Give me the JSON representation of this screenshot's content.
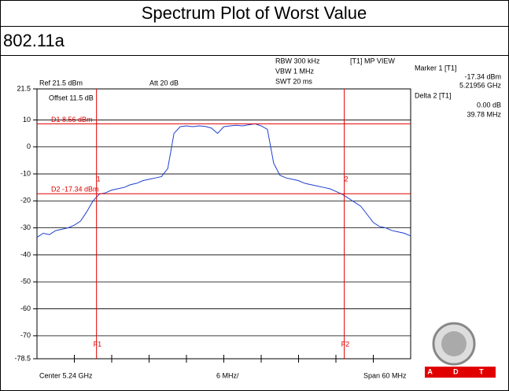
{
  "header": {
    "title": "Spectrum Plot of Worst Value",
    "subtitle": "802.11a"
  },
  "chart_data": {
    "type": "line",
    "x": [
      5.21,
      5.211,
      5.212,
      5.213,
      5.214,
      5.215,
      5.216,
      5.217,
      5.218,
      5.219,
      5.22,
      5.221,
      5.222,
      5.223,
      5.224,
      5.225,
      5.226,
      5.227,
      5.228,
      5.229,
      5.23,
      5.231,
      5.232,
      5.233,
      5.234,
      5.235,
      5.236,
      5.237,
      5.238,
      5.239,
      5.24,
      5.241,
      5.242,
      5.243,
      5.244,
      5.245,
      5.246,
      5.247,
      5.248,
      5.249,
      5.25,
      5.251,
      5.252,
      5.253,
      5.254,
      5.255,
      5.256,
      5.257,
      5.258,
      5.259,
      5.26,
      5.261,
      5.262,
      5.263,
      5.264,
      5.265,
      5.266,
      5.267,
      5.268,
      5.269,
      5.27
    ],
    "series": [
      {
        "color": "#1f3fd0",
        "values": [
          -33.5,
          -32,
          -32.5,
          -31,
          -30.5,
          -30,
          -29,
          -27.5,
          -24,
          -20,
          -17.5,
          -17,
          -16,
          -15.5,
          -15,
          -14,
          -13.5,
          -12.5,
          -12,
          -11.5,
          -11,
          -8,
          5,
          7.5,
          7.8,
          7.5,
          7.8,
          7.6,
          7,
          5,
          7.5,
          7.8,
          8,
          7.8,
          8.2,
          8.56,
          7.8,
          6.5,
          -6,
          -10.5,
          -11.5,
          -12,
          -12.5,
          -13.5,
          -14,
          -14.5,
          -15,
          -15.5,
          -16.5,
          -17.5,
          -19,
          -20.5,
          -22,
          -25,
          -28,
          -29.5,
          -30,
          -31,
          -31.5,
          -32,
          -33
        ]
      }
    ],
    "xlim": [
      5.21,
      5.27
    ],
    "ylim": [
      -78.5,
      21.5
    ],
    "yticks": [
      21.5,
      10,
      0,
      -10,
      -20,
      -30,
      -40,
      -50,
      -60,
      -70,
      -78.5
    ],
    "grid": true,
    "display_lines": [
      {
        "label": "D1 8.56 dBm",
        "value": 8.56
      },
      {
        "label": "D2 -17.34 dBm",
        "value": -17.34
      }
    ],
    "frequency_lines": [
      {
        "label": "F1",
        "value": 5.21956
      },
      {
        "label": "F2",
        "value": 5.25934
      }
    ],
    "markers": [
      {
        "label": "1",
        "x": 5.21956
      },
      {
        "label": "2",
        "x": 5.25934
      }
    ],
    "settings": {
      "rbw": "RBW 300 kHz",
      "vbw": "VBW 1 MHz",
      "swt": "SWT 20 ms",
      "view": "[T1] MP VIEW",
      "ref": "Ref 21.5 dBm",
      "att": "Att 20 dB",
      "offset": "Offset 11.5 dB",
      "center": "Center 5.24 GHz",
      "div": "6 MHz/",
      "span": "Span 60 MHz"
    },
    "marker_readout": {
      "marker1": "Marker 1 [T1]",
      "level": "-17.34 dBm",
      "freq": "5.21956 GHz",
      "delta": "Delta 2 [T1]",
      "delta_level": "0.00 dB",
      "delta_freq": "39.78 MHz"
    }
  },
  "logo": {
    "text": "A D T"
  }
}
